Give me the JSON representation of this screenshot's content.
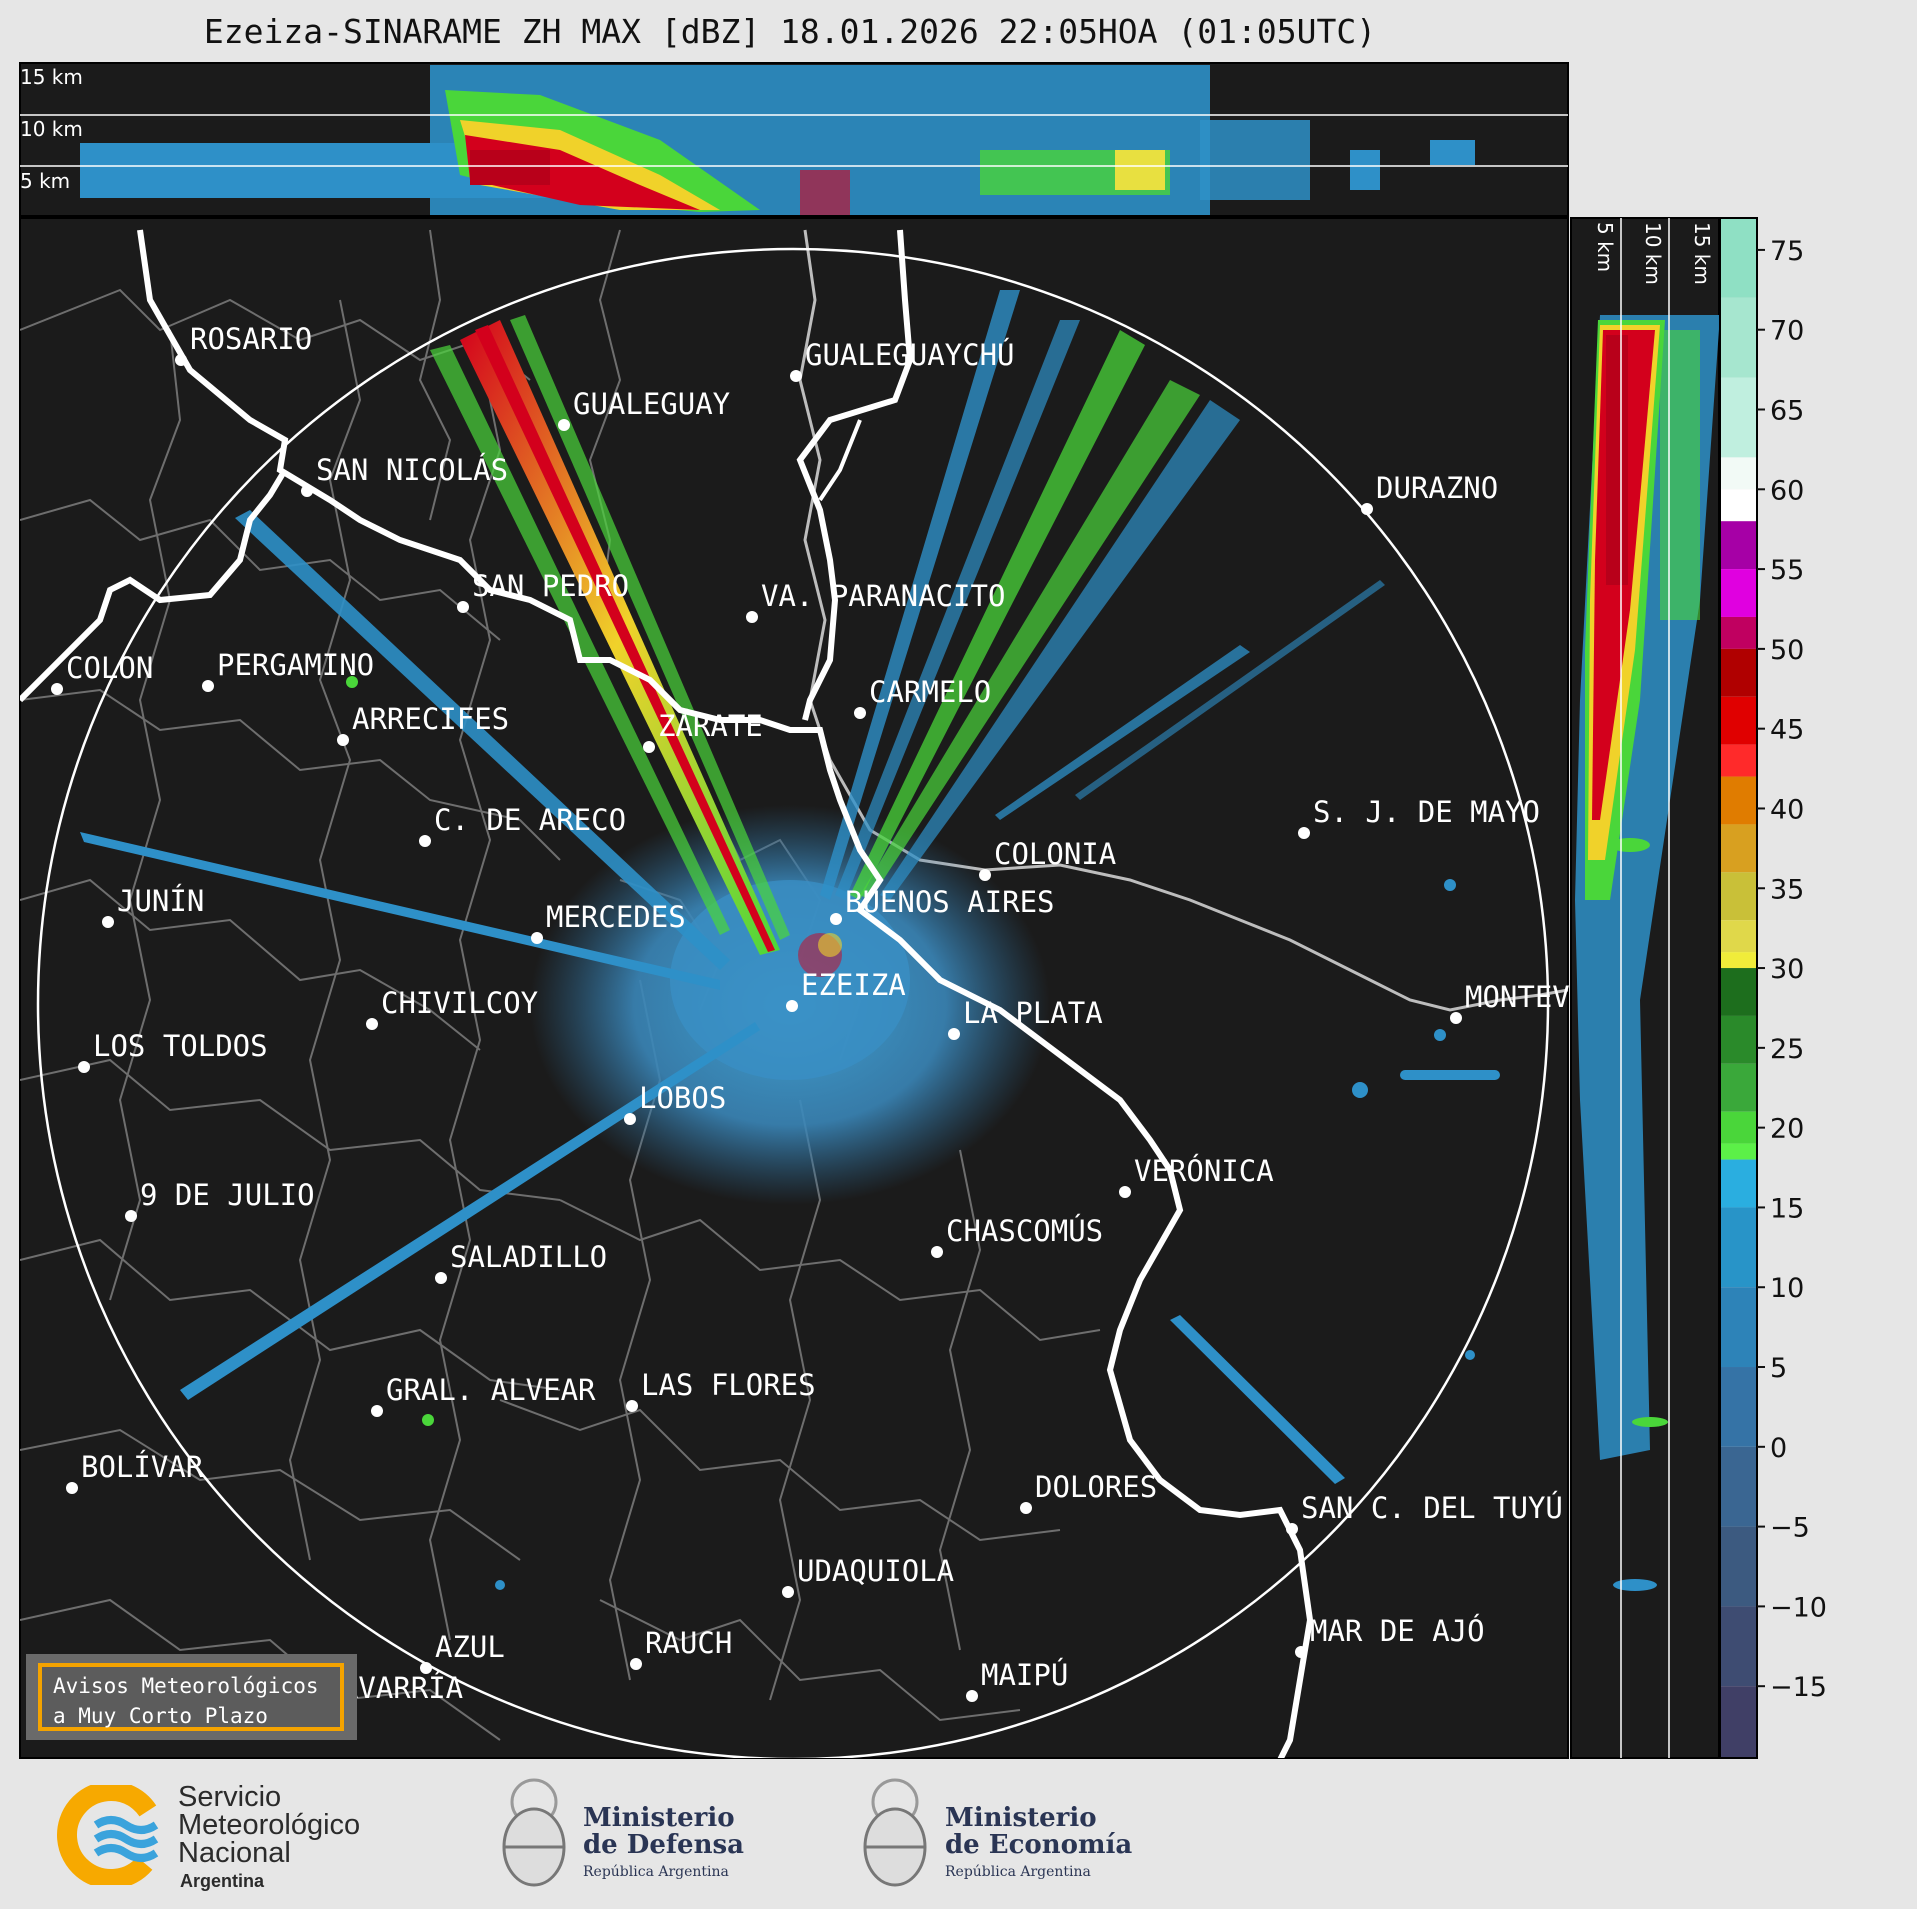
{
  "title": "Ezeiza-SINARAME ZH MAX [dBZ] 18.01.2026 22:05HOA (01:05UTC)",
  "top_profile": {
    "height_labels": [
      "15 km",
      "10 km",
      "5 km"
    ]
  },
  "side_profile": {
    "height_labels": [
      "5 km",
      "10 km",
      "15 km"
    ]
  },
  "colorbar": {
    "ticks": [
      "75",
      "70",
      "65",
      "60",
      "55",
      "50",
      "45",
      "40",
      "35",
      "30",
      "25",
      "20",
      "15",
      "10",
      "5",
      "0",
      "−5",
      "−10",
      "−15"
    ]
  },
  "cities": [
    {
      "name": "ROSARIO"
    },
    {
      "name": "GUALEGUAYCHÚ"
    },
    {
      "name": "GUALEGUAY"
    },
    {
      "name": "SAN NICOLÁS"
    },
    {
      "name": "DURAZNO"
    },
    {
      "name": "SAN PEDRO"
    },
    {
      "name": "VA. PARANACITO"
    },
    {
      "name": "COLON"
    },
    {
      "name": "PERGAMINO"
    },
    {
      "name": "CARMELO"
    },
    {
      "name": "ARRECIFES"
    },
    {
      "name": "ZÁRATE"
    },
    {
      "name": "S. J. DE MAYO"
    },
    {
      "name": "C. DE ARECO"
    },
    {
      "name": "COLONIA"
    },
    {
      "name": "BUENOS AIRES"
    },
    {
      "name": "JUNÍN"
    },
    {
      "name": "MERCEDES"
    },
    {
      "name": "EZEIZA"
    },
    {
      "name": "MONTEVIDEO"
    },
    {
      "name": "CHIVILCOY"
    },
    {
      "name": "LA PLATA"
    },
    {
      "name": "LOS TOLDOS"
    },
    {
      "name": "LOBOS"
    },
    {
      "name": "VERÓNICA"
    },
    {
      "name": "9 DE JULIO"
    },
    {
      "name": "CHASCOMÚS"
    },
    {
      "name": "SALADILLO"
    },
    {
      "name": "GRAL. ALVEAR"
    },
    {
      "name": "LAS FLORES"
    },
    {
      "name": "BOLÍVAR"
    },
    {
      "name": "DOLORES"
    },
    {
      "name": "SAN C. DEL TUYÚ"
    },
    {
      "name": "UDAQUIOLA"
    },
    {
      "name": "AZUL"
    },
    {
      "name": "RAUCH"
    },
    {
      "name": "MAR DE AJÓ"
    },
    {
      "name": "MAIPÚ"
    },
    {
      "name": "OLAVARRÍA"
    }
  ],
  "aviso": {
    "line1": "Avisos Meteorológicos",
    "line2": "a Muy Corto Plazo"
  },
  "logos": {
    "smn": {
      "line1": "Servicio",
      "line2": "Meteorológico",
      "line3": "Nacional",
      "sub": "Argentina"
    },
    "defensa": {
      "line1": "Ministerio",
      "line2": "de Defensa",
      "sub": "República Argentina"
    },
    "economia": {
      "line1": "Ministerio",
      "line2": "de Economía",
      "sub": "República Argentina"
    }
  },
  "colors": {
    "background": "#1b1b1b",
    "low_echo": "#2e90c8",
    "strong_echo": "#d3001c",
    "aviso_border": "#f4a300"
  }
}
